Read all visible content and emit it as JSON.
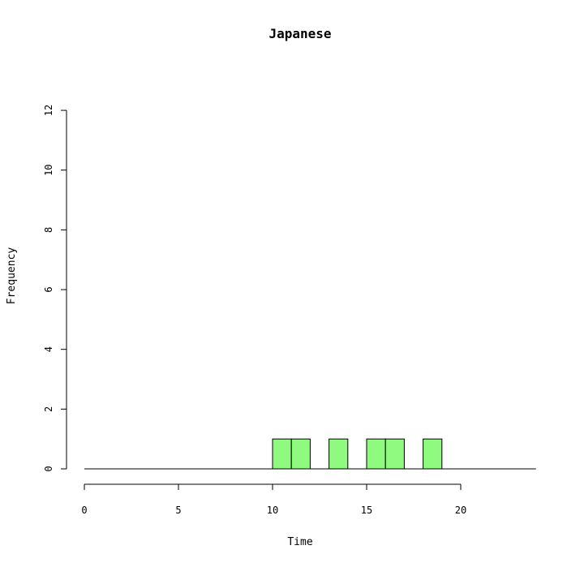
{
  "chart_data": {
    "type": "bar",
    "title": "Japanese",
    "xlabel": "Time",
    "ylabel": "Frequency",
    "xlim": [
      0,
      24
    ],
    "ylim": [
      0,
      12
    ],
    "x_ticks": [
      0,
      5,
      10,
      15,
      20
    ],
    "y_ticks": [
      0,
      2,
      4,
      6,
      8,
      10,
      12
    ],
    "bar_color": "#90fa80",
    "bins": [
      {
        "start": 10,
        "end": 11,
        "value": 1
      },
      {
        "start": 11,
        "end": 12,
        "value": 1
      },
      {
        "start": 13,
        "end": 14,
        "value": 1
      },
      {
        "start": 15,
        "end": 16,
        "value": 1
      },
      {
        "start": 16,
        "end": 17,
        "value": 1
      },
      {
        "start": 18,
        "end": 19,
        "value": 1
      }
    ],
    "grid": false,
    "legend": "none"
  }
}
